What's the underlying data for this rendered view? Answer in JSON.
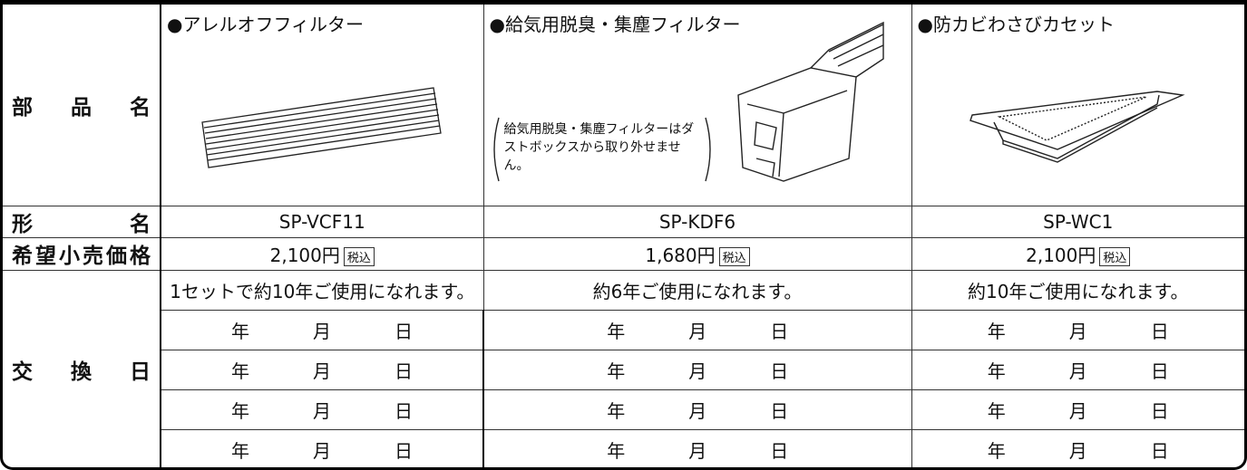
{
  "table": {
    "row_labels": {
      "part_name": "部品名",
      "model": "形名",
      "price": "希望小売価格",
      "replacement": "交換日"
    },
    "columns": [
      {
        "part_name": "●アレルオフフィルター",
        "model": "SP-VCF11",
        "price": "2,100円",
        "usage": "1セットで約10年ご使用になれます。"
      },
      {
        "part_name": "●給気用脱臭・集塵フィルター",
        "note": "給気用脱臭・集塵フィルターはダストボックスから取り外せません。",
        "model": "SP-KDF6",
        "price": "1,680円",
        "usage": "約6年ご使用になれます。"
      },
      {
        "part_name": "●防カビわさびカセット",
        "model": "SP-WC1",
        "price": "2,100円",
        "usage": "約10年ご使用になれます。"
      }
    ],
    "tax_label": "税込",
    "date_units": [
      "年",
      "月",
      "日"
    ]
  }
}
